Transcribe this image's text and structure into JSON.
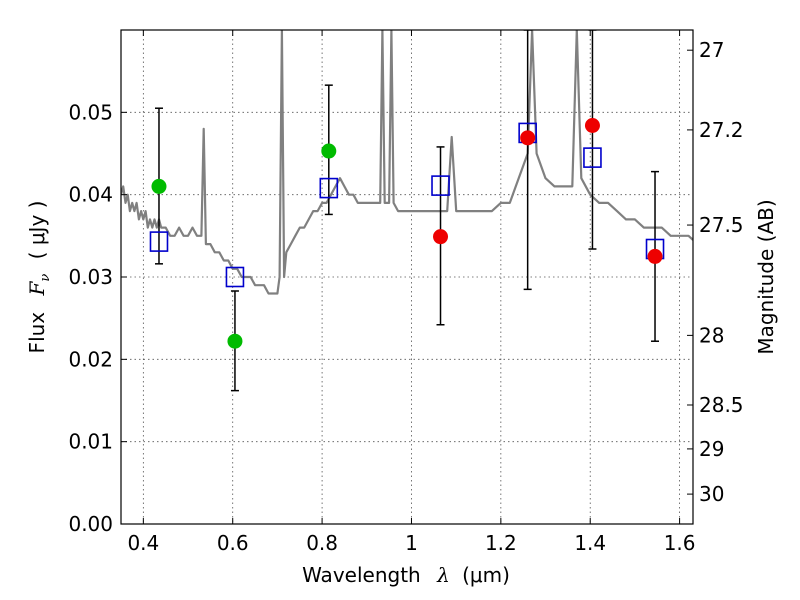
{
  "chart_data": {
    "type": "scatter",
    "xlabel_text": "Wavelength",
    "xlabel_symbol": "λ",
    "xlabel_unit": "(μm)",
    "ylabel_text": "Flux",
    "ylabel_symbol": "F",
    "ylabel_subscript": "ν",
    "ylabel_unit": "( μJy )",
    "y2label": "Magnitude (AB)",
    "xlim": [
      0.35,
      1.63
    ],
    "ylim": [
      0.0,
      0.06
    ],
    "grid": true,
    "x_ticks": [
      0.4,
      0.6,
      0.8,
      1.0,
      1.2,
      1.4,
      1.6
    ],
    "x_tick_labels": [
      "0.4",
      "0.6",
      "0.8",
      "1",
      "1.2",
      "1.4",
      "1.6"
    ],
    "y_ticks": [
      0.0,
      0.01,
      0.02,
      0.03,
      0.04,
      0.05
    ],
    "y_tick_labels": [
      "0.00",
      "0.01",
      "0.02",
      "0.03",
      "0.04",
      "0.05"
    ],
    "y2_ticks": [
      27,
      27.2,
      27.5,
      28,
      28.5,
      29,
      30
    ],
    "y2_tick_labels": [
      "27",
      "27.2",
      "27.5",
      "28",
      "28.5",
      "29",
      "30"
    ],
    "model_spectrum": {
      "color": "#808080",
      "x": [
        0.35,
        0.355,
        0.36,
        0.365,
        0.37,
        0.375,
        0.38,
        0.385,
        0.39,
        0.395,
        0.4,
        0.405,
        0.41,
        0.415,
        0.42,
        0.425,
        0.43,
        0.435,
        0.44,
        0.45,
        0.46,
        0.47,
        0.48,
        0.49,
        0.5,
        0.51,
        0.52,
        0.53,
        0.535,
        0.54,
        0.545,
        0.55,
        0.56,
        0.57,
        0.58,
        0.59,
        0.6,
        0.61,
        0.62,
        0.63,
        0.64,
        0.65,
        0.66,
        0.67,
        0.68,
        0.69,
        0.695,
        0.7,
        0.705,
        0.71,
        0.715,
        0.72,
        0.73,
        0.74,
        0.75,
        0.76,
        0.77,
        0.78,
        0.79,
        0.8,
        0.81,
        0.82,
        0.83,
        0.84,
        0.85,
        0.86,
        0.87,
        0.88,
        0.89,
        0.9,
        0.91,
        0.92,
        0.93,
        0.935,
        0.94,
        0.95,
        0.955,
        0.96,
        0.97,
        0.98,
        0.99,
        1.0,
        1.02,
        1.04,
        1.06,
        1.08,
        1.09,
        1.1,
        1.12,
        1.14,
        1.16,
        1.18,
        1.2,
        1.22,
        1.24,
        1.26,
        1.27,
        1.28,
        1.3,
        1.32,
        1.34,
        1.36,
        1.37,
        1.38,
        1.4,
        1.42,
        1.44,
        1.46,
        1.48,
        1.5,
        1.52,
        1.54,
        1.56,
        1.58,
        1.6,
        1.62,
        1.63
      ],
      "y": [
        0.04,
        0.041,
        0.039,
        0.04,
        0.038,
        0.039,
        0.038,
        0.039,
        0.037,
        0.038,
        0.037,
        0.038,
        0.036,
        0.037,
        0.036,
        0.037,
        0.036,
        0.037,
        0.036,
        0.036,
        0.035,
        0.035,
        0.036,
        0.035,
        0.035,
        0.036,
        0.035,
        0.035,
        0.048,
        0.034,
        0.034,
        0.034,
        0.033,
        0.033,
        0.032,
        0.032,
        0.031,
        0.031,
        0.03,
        0.03,
        0.03,
        0.029,
        0.029,
        0.029,
        0.028,
        0.028,
        0.028,
        0.028,
        0.03,
        0.06,
        0.03,
        0.033,
        0.034,
        0.035,
        0.036,
        0.036,
        0.037,
        0.038,
        0.038,
        0.039,
        0.039,
        0.04,
        0.041,
        0.042,
        0.041,
        0.04,
        0.04,
        0.039,
        0.039,
        0.039,
        0.039,
        0.039,
        0.039,
        0.06,
        0.039,
        0.039,
        0.06,
        0.039,
        0.038,
        0.038,
        0.038,
        0.038,
        0.038,
        0.038,
        0.038,
        0.038,
        0.047,
        0.038,
        0.038,
        0.038,
        0.038,
        0.038,
        0.039,
        0.039,
        0.042,
        0.045,
        0.06,
        0.045,
        0.042,
        0.041,
        0.041,
        0.041,
        0.06,
        0.042,
        0.04,
        0.039,
        0.039,
        0.038,
        0.037,
        0.037,
        0.036,
        0.036,
        0.036,
        0.035,
        0.035,
        0.035,
        0.0345
      ]
    },
    "model_photometry": {
      "marker": "open-square",
      "color": "#0000cc",
      "x": [
        0.435,
        0.605,
        0.815,
        1.065,
        1.26,
        1.405,
        1.545
      ],
      "y": [
        0.0343,
        0.03,
        0.0408,
        0.0411,
        0.0475,
        0.0445,
        0.0334
      ]
    },
    "observed_detections": {
      "marker": "filled-circle",
      "color": "#00bb00",
      "x": [
        0.435,
        0.605,
        0.815
      ],
      "y": [
        0.041,
        0.0222,
        0.0453
      ],
      "yerr_low": [
        0.0316,
        0.0162,
        0.0376
      ],
      "yerr_high": [
        0.0505,
        0.0283,
        0.0533
      ]
    },
    "observed_upper": {
      "marker": "filled-circle",
      "color": "#ee0000",
      "x": [
        1.065,
        1.26,
        1.405,
        1.545
      ],
      "y": [
        0.0349,
        0.0469,
        0.0484,
        0.0325
      ],
      "yerr_low": [
        0.0242,
        0.0285,
        0.0334,
        0.0222
      ],
      "yerr_high": [
        0.0458,
        0.06,
        0.06,
        0.0428
      ]
    }
  }
}
